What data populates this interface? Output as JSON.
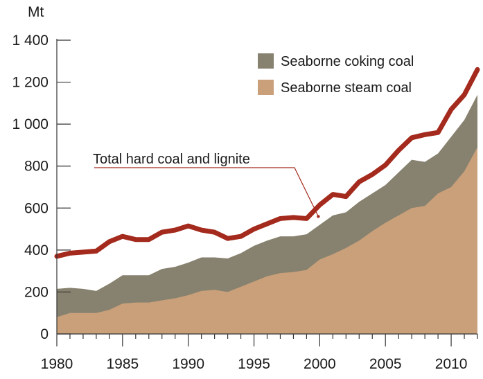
{
  "chart_data": {
    "type": "area",
    "ylabel": "Mt",
    "ylim": [
      0,
      1400
    ],
    "xlim": [
      1980,
      2012
    ],
    "y_ticks": [
      0,
      200,
      400,
      600,
      800,
      1000,
      1200,
      1400
    ],
    "y_tick_labels": [
      "0",
      "200",
      "400",
      "600",
      "800",
      "1 000",
      "1 200",
      "1 400"
    ],
    "x_ticks": [
      1980,
      1985,
      1990,
      1995,
      2000,
      2005,
      2010
    ],
    "x_tick_labels": [
      "1980",
      "1985",
      "1990",
      "1995",
      "2000",
      "2005",
      "2010"
    ],
    "grid": false,
    "legend_position": "top-right",
    "x": [
      1980,
      1981,
      1982,
      1983,
      1984,
      1985,
      1986,
      1987,
      1988,
      1989,
      1990,
      1991,
      1992,
      1993,
      1994,
      1995,
      1996,
      1997,
      1998,
      1999,
      2000,
      2001,
      2002,
      2003,
      2004,
      2005,
      2006,
      2007,
      2008,
      2009,
      2010,
      2011,
      2012
    ],
    "series": [
      {
        "name": "Seaborne steam coal",
        "type": "area",
        "color": "#c9a07a",
        "values": [
          80,
          100,
          100,
          100,
          115,
          145,
          150,
          150,
          160,
          170,
          185,
          205,
          210,
          200,
          225,
          250,
          275,
          290,
          295,
          305,
          355,
          380,
          410,
          445,
          490,
          530,
          565,
          600,
          610,
          670,
          700,
          775,
          890
        ]
      },
      {
        "name": "Seaborne coking coal",
        "type": "area-stacked",
        "color": "#87826f",
        "values": [
          215,
          220,
          215,
          205,
          240,
          280,
          280,
          280,
          310,
          320,
          340,
          365,
          365,
          360,
          385,
          420,
          445,
          465,
          465,
          475,
          520,
          565,
          580,
          630,
          670,
          710,
          770,
          830,
          820,
          860,
          940,
          1020,
          1140
        ]
      },
      {
        "name": "Total hard coal and lignite",
        "type": "line",
        "color": "#a32a1c",
        "values": [
          370,
          385,
          390,
          395,
          440,
          465,
          450,
          450,
          485,
          495,
          515,
          495,
          485,
          455,
          465,
          500,
          525,
          550,
          555,
          550,
          615,
          665,
          655,
          725,
          760,
          805,
          875,
          935,
          950,
          960,
          1070,
          1140,
          1260
        ]
      }
    ],
    "legend": [
      "Seaborne coking coal",
      "Seaborne steam coal"
    ],
    "annotation": {
      "text": "Total hard coal and lignite",
      "points_to_x": 2000
    }
  }
}
